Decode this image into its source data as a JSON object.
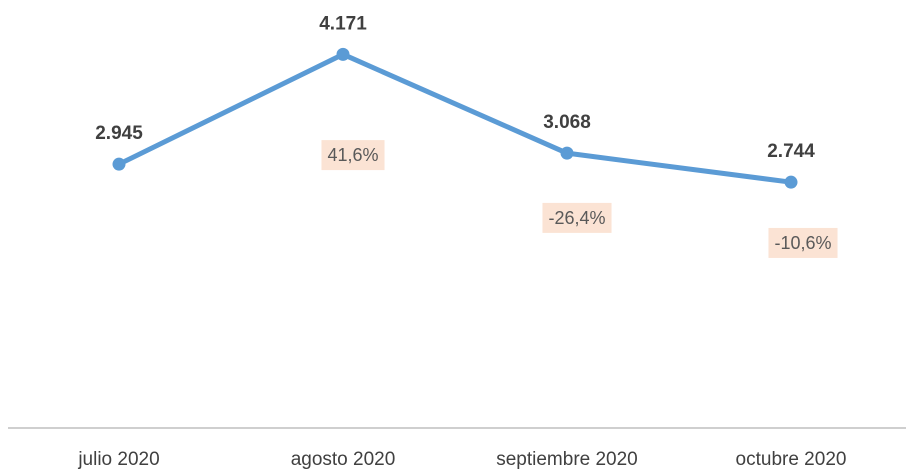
{
  "chart_data": {
    "type": "line",
    "categories": [
      "julio 2020",
      "agosto 2020",
      "septiembre 2020",
      "octubre 2020"
    ],
    "series": [
      {
        "color": "#5b9bd5",
        "values": [
          2945,
          4171,
          3068,
          2744
        ],
        "value_labels": [
          "2.945",
          "4.171",
          "3.068",
          "2.744"
        ]
      }
    ],
    "annotations": [
      null,
      "41,6%",
      "-26,4%",
      "-10,6%"
    ],
    "ylim": [
      0,
      4800
    ]
  }
}
